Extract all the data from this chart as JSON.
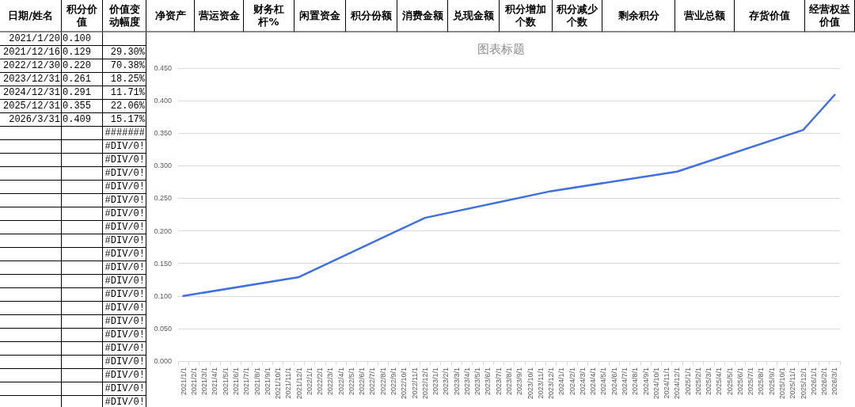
{
  "chart_data": {
    "type": "line",
    "title": "图表标题",
    "categories": [
      "2021/1/1",
      "2021/2/1",
      "2021/3/1",
      "2021/4/1",
      "2021/5/1",
      "2021/6/1",
      "2021/7/1",
      "2021/8/1",
      "2021/9/1",
      "2021/10/1",
      "2021/11/1",
      "2021/12/1",
      "2022/1/1",
      "2022/2/1",
      "2022/3/1",
      "2022/4/1",
      "2022/5/1",
      "2022/6/1",
      "2022/7/1",
      "2022/8/1",
      "2022/9/1",
      "2022/10/1",
      "2022/11/1",
      "2022/12/1",
      "2023/1/1",
      "2023/2/1",
      "2023/3/1",
      "2023/4/1",
      "2023/5/1",
      "2023/6/1",
      "2023/7/1",
      "2023/8/1",
      "2023/9/1",
      "2023/10/1",
      "2023/11/1",
      "2023/12/1",
      "2024/1/1",
      "2024/2/1",
      "2024/3/1",
      "2024/4/1",
      "2024/5/1",
      "2024/6/1",
      "2024/7/1",
      "2024/8/1",
      "2024/9/1",
      "2024/10/1",
      "2024/11/1",
      "2024/12/1",
      "2025/1/1",
      "2025/2/1",
      "2025/3/1",
      "2025/4/1",
      "2025/5/1",
      "2025/6/1",
      "2025/7/1",
      "2025/8/1",
      "2025/9/1",
      "2025/10/1",
      "2025/11/1",
      "2025/12/1",
      "2026/1/1",
      "2026/2/1",
      "2026/3/1"
    ],
    "series": [
      {
        "color": "#3f6fe0",
        "values": [
          0.1,
          null,
          null,
          null,
          null,
          null,
          null,
          null,
          null,
          null,
          null,
          0.129,
          null,
          null,
          null,
          null,
          null,
          null,
          null,
          null,
          null,
          null,
          null,
          0.22,
          null,
          null,
          null,
          null,
          null,
          null,
          null,
          null,
          null,
          null,
          null,
          0.261,
          null,
          null,
          null,
          null,
          null,
          null,
          null,
          null,
          null,
          null,
          null,
          0.291,
          null,
          null,
          null,
          null,
          null,
          null,
          null,
          null,
          null,
          null,
          null,
          0.355,
          null,
          null,
          0.409
        ]
      }
    ],
    "ylim": [
      0,
      0.45
    ],
    "yticks": [
      {
        "value": 0,
        "label": "0.000"
      },
      {
        "value": 0.05,
        "label": "0.050"
      },
      {
        "value": 0.1,
        "label": "0.100"
      },
      {
        "value": 0.15,
        "label": "0.150"
      },
      {
        "value": 0.2,
        "label": "0.200"
      },
      {
        "value": 0.25,
        "label": "0.250"
      },
      {
        "value": 0.3,
        "label": "0.300"
      },
      {
        "value": 0.35,
        "label": "0.350"
      },
      {
        "value": 0.4,
        "label": "0.400"
      },
      {
        "value": 0.45,
        "label": "0.450"
      }
    ],
    "grid": "y",
    "annotations": [
      "日期/姓名",
      "积分价值",
      "价值变动幅度",
      "净资产",
      "营运资金",
      "财务杠杆%",
      "闲置资金",
      "积分份额",
      "消费金额",
      "兑现金额",
      "积分增加个数",
      "积分减少个数",
      "剩余积分",
      "营业总额",
      "存货价值",
      "经营权益价值",
      "2021/1/20",
      "2021/12/16",
      "2022/12/30",
      "2023/12/31",
      "2024/12/31",
      "2025/12/31",
      "2026/3/31",
      "0.100",
      "0.129",
      "0.220",
      "0.261",
      "0.291",
      "0.355",
      "0.409",
      "29.30%",
      "70.38%",
      "18.25%",
      "11.71%",
      "22.06%",
      "15.17%",
      "#######",
      "#DIV/0!",
      "#DIV/0!",
      "#DIV/0!",
      "#DIV/0!",
      "#DIV/0!",
      "#DIV/0!",
      "#DIV/0!",
      "#DIV/0!",
      "#DIV/0!",
      "#DIV/0!",
      "#DIV/0!",
      "#DIV/0!",
      "#DIV/0!",
      "#DIV/0!",
      "#DIV/0!",
      "#DIV/0!",
      "#DIV/0!",
      "#DIV/0!",
      "#DIV/0!",
      "#DIV/0!"
    ]
  }
}
